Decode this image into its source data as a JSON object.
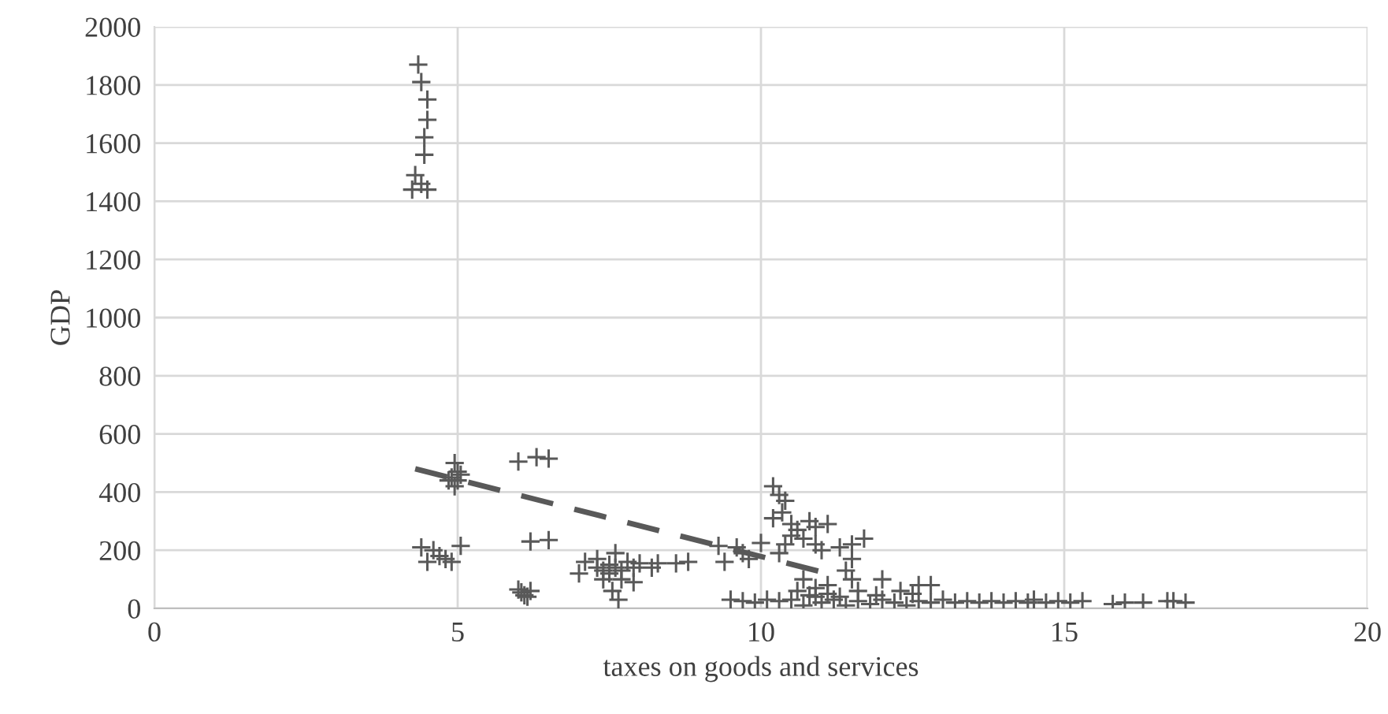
{
  "chart_data": {
    "type": "scatter",
    "xlabel": "taxes on goods and services",
    "ylabel": "GDP",
    "xlim": [
      0,
      20
    ],
    "xticks": [
      0,
      5,
      10,
      15,
      20
    ],
    "ylim": [
      0,
      2000
    ],
    "yticks": [
      0,
      200,
      400,
      600,
      800,
      1000,
      1200,
      1400,
      1600,
      1800,
      2000
    ],
    "grid": true,
    "series": [
      {
        "color": "#595959",
        "marker": "cross",
        "x": [
          4.35,
          4.4,
          4.5,
          4.5,
          4.45,
          4.45,
          4.3,
          4.4,
          4.25,
          4.5,
          4.95,
          5.0,
          4.9,
          5.0,
          4.85,
          5.05,
          4.95,
          6.0,
          6.3,
          6.5,
          6.2,
          6.5,
          4.4,
          4.5,
          4.6,
          4.8,
          4.9,
          5.05,
          4.7,
          6.0,
          6.1,
          6.05,
          6.15,
          6.2,
          7.1,
          7.3,
          7.4,
          7.5,
          7.6,
          7.5,
          7.7,
          7.6,
          7.8,
          7.4,
          7.3,
          7.55,
          7.65,
          7.9,
          8.0,
          8.3,
          8.6,
          8.8,
          7.0,
          7.7,
          7.9,
          8.2,
          9.3,
          9.6,
          9.7,
          9.4,
          9.8,
          10.0,
          10.3,
          9.5,
          9.7,
          9.9,
          10.1,
          10.3,
          10.2,
          10.3,
          10.4,
          10.35,
          10.2,
          10.5,
          10.6,
          10.5,
          10.7,
          10.8,
          10.9,
          11.1,
          10.4,
          10.9,
          11.0,
          11.3,
          11.5,
          11.7,
          11.5,
          11.4,
          11.5,
          10.7,
          10.9,
          11.1,
          11.6,
          12.0,
          12.3,
          12.6,
          12.8,
          10.5,
          10.7,
          10.9,
          11.0,
          11.2,
          11.4,
          11.6,
          11.8,
          12.0,
          12.2,
          12.4,
          12.6,
          12.8,
          13.0,
          13.2,
          13.4,
          13.6,
          13.8,
          14.0,
          14.2,
          14.4,
          14.5,
          14.7,
          14.9,
          15.1,
          15.3,
          15.8,
          16.0,
          16.3,
          16.7,
          16.8,
          17.0,
          11.1,
          11.3,
          11.9,
          12.5,
          10.6,
          10.8
        ],
        "values": [
          1870,
          1810,
          1750,
          1680,
          1620,
          1560,
          1490,
          1460,
          1440,
          1440,
          500,
          470,
          450,
          440,
          440,
          460,
          420,
          505,
          520,
          515,
          230,
          235,
          210,
          160,
          200,
          170,
          160,
          215,
          180,
          65,
          45,
          55,
          40,
          60,
          160,
          170,
          130,
          150,
          140,
          120,
          100,
          190,
          160,
          100,
          140,
          60,
          30,
          90,
          155,
          155,
          155,
          160,
          120,
          130,
          140,
          140,
          215,
          210,
          190,
          160,
          170,
          225,
          190,
          30,
          25,
          20,
          30,
          25,
          420,
          390,
          370,
          330,
          310,
          290,
          270,
          250,
          240,
          300,
          280,
          290,
          220,
          220,
          200,
          210,
          220,
          240,
          170,
          130,
          100,
          100,
          70,
          80,
          60,
          100,
          60,
          80,
          80,
          30,
          10,
          40,
          20,
          30,
          10,
          25,
          15,
          30,
          20,
          10,
          25,
          20,
          30,
          20,
          25,
          20,
          25,
          20,
          25,
          20,
          30,
          20,
          25,
          20,
          25,
          15,
          20,
          20,
          25,
          25,
          20,
          50,
          40,
          45,
          50,
          60,
          45
        ]
      },
      {
        "type": "line",
        "color": "#595959",
        "line_style": "dashed",
        "marker": "none",
        "x": [
          4.3,
          11.2
        ],
        "values": [
          480,
          115
        ]
      }
    ]
  }
}
